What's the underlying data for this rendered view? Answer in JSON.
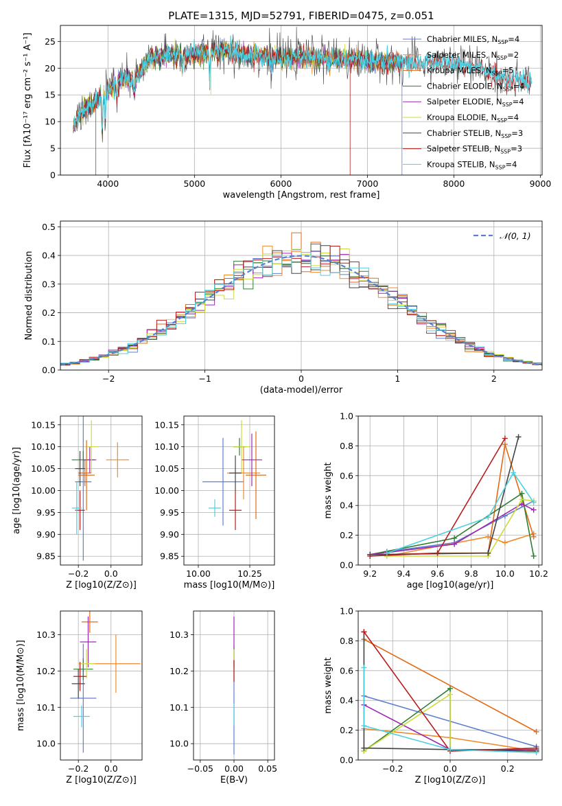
{
  "colors": [
    "#5b7fcf",
    "#ef8a2b",
    "#e36a13",
    "#2e7d32",
    "#9c27b0",
    "#cddc39",
    "#424242",
    "#b71c1c",
    "#4dd0e1"
  ],
  "chart_data": [
    {
      "id": "spectrum",
      "type": "line",
      "title": "PLATE=1315, MJD=52791, FIBERID=0475, z=0.051",
      "xlabel": "wavelength [Angstrom, rest frame]",
      "ylabel": "Flux [fλ10⁻¹⁷ erg cm⁻² s⁻¹ A⁻¹]",
      "xlim": [
        3450,
        9020
      ],
      "ylim": [
        0,
        28
      ],
      "xticks": [
        4000,
        5000,
        6000,
        7000,
        8000,
        9000
      ],
      "yticks": [
        0,
        5,
        10,
        15,
        20,
        25
      ],
      "continuum": [
        [
          3600,
          9
        ],
        [
          3700,
          12
        ],
        [
          3800,
          13
        ],
        [
          3900,
          14
        ],
        [
          4000,
          16
        ],
        [
          4100,
          17.5
        ],
        [
          4200,
          18.5
        ],
        [
          4300,
          17.5
        ],
        [
          4400,
          20
        ],
        [
          4500,
          22
        ],
        [
          4700,
          22.5
        ],
        [
          5000,
          22.5
        ],
        [
          5300,
          23.5
        ],
        [
          5600,
          22.5
        ],
        [
          6000,
          22
        ],
        [
          6500,
          22
        ],
        [
          7000,
          21.5
        ],
        [
          7400,
          21
        ],
        [
          7800,
          21
        ],
        [
          8200,
          20.5
        ],
        [
          8600,
          18
        ],
        [
          8900,
          17
        ]
      ],
      "legend": [
        "Chabrier MILES, N_SSP=4",
        "Salpeter MILES, N_SSP=2",
        "Kroupa MILES, N_SSP=5",
        "Chabrier ELODIE, N_SSP=4",
        "Salpeter ELODIE, N_SSP=4",
        "Kroupa ELODIE, N_SSP=4",
        "Chabrier STELIB, N_SSP=3",
        "Salpeter STELIB, N_SSP=3",
        "Kroupa STELIB, N_SSP=4"
      ],
      "legend_placement": "right"
    },
    {
      "id": "residuals",
      "type": "step",
      "xlabel": "(data-model)/error",
      "ylabel": "Normed distribution",
      "xlim": [
        -2.5,
        2.5
      ],
      "ylim": [
        0,
        0.52
      ],
      "xticks": [
        -2,
        -1,
        0,
        1,
        2
      ],
      "yticks": [
        0,
        0.1,
        0.2,
        0.3,
        0.4,
        0.5
      ],
      "bin_width": 0.1,
      "legend": [
        "𝒩(0, 1)"
      ],
      "legend_placement": "top-right"
    },
    {
      "id": "age_vs_Z",
      "type": "errorbar",
      "xlabel": "Z [log10(Z/Z⊙)]",
      "ylabel": "age  [log10(age/yr)]",
      "xlim": [
        -0.31,
        0.19
      ],
      "ylim": [
        9.83,
        10.17
      ],
      "xticks": [
        -0.2,
        0.0
      ],
      "yticks": [
        9.85,
        9.9,
        9.95,
        10.0,
        10.05,
        10.1,
        10.15
      ],
      "points": [
        {
          "x": -0.17,
          "y": 10.02,
          "xerr": 0.05,
          "yerr": 0.18,
          "c": 0
        },
        {
          "x": 0.04,
          "y": 10.07,
          "xerr": 0.07,
          "yerr": 0.04,
          "c": 1
        },
        {
          "x": -0.16,
          "y": 10.04,
          "xerr": 0.04,
          "yerr": 0.03,
          "c": 2
        },
        {
          "x": -0.17,
          "y": 10.07,
          "xerr": 0.07,
          "yerr": 0.02,
          "c": 3
        },
        {
          "x": -0.13,
          "y": 10.07,
          "xerr": 0.04,
          "yerr": 0.03,
          "c": 4
        },
        {
          "x": -0.12,
          "y": 10.1,
          "xerr": 0.04,
          "yerr": 0.06,
          "c": 5
        },
        {
          "x": -0.19,
          "y": 10.05,
          "xerr": 0.03,
          "yerr": 0.04,
          "c": 6
        },
        {
          "x": -0.19,
          "y": 9.955,
          "xerr": 0.03,
          "yerr": 0.045,
          "c": 7
        },
        {
          "x": -0.21,
          "y": 9.96,
          "xerr": 0.03,
          "yerr": 0.06,
          "c": 8
        },
        {
          "x": -0.15,
          "y": 10.035,
          "xerr": 0.05,
          "yerr": 0.08,
          "c": 2
        }
      ]
    },
    {
      "id": "age_vs_mass",
      "type": "errorbar",
      "xlabel": "mass [log10(M/M⊙)]",
      "ylabel": "",
      "xlim": [
        9.93,
        10.37
      ],
      "ylim": [
        9.83,
        10.17
      ],
      "xticks": [
        10.0,
        10.25
      ],
      "yticks": [
        9.85,
        9.9,
        9.95,
        10.0,
        10.05,
        10.1,
        10.15
      ],
      "points": [
        {
          "x": 10.12,
          "y": 10.02,
          "xerr": 0.1,
          "yerr": 0.1,
          "c": 0
        },
        {
          "x": 10.22,
          "y": 10.04,
          "xerr": 0.08,
          "yerr": 0.06,
          "c": 1
        },
        {
          "x": 10.28,
          "y": 10.035,
          "xerr": 0.05,
          "yerr": 0.1,
          "c": 2
        },
        {
          "x": 10.2,
          "y": 10.1,
          "xerr": 0.03,
          "yerr": 0.02,
          "c": 3
        },
        {
          "x": 10.26,
          "y": 10.07,
          "xerr": 0.05,
          "yerr": 0.06,
          "c": 4
        },
        {
          "x": 10.21,
          "y": 10.1,
          "xerr": 0.04,
          "yerr": 0.06,
          "c": 5
        },
        {
          "x": 10.18,
          "y": 10.04,
          "xerr": 0.03,
          "yerr": 0.04,
          "c": 6
        },
        {
          "x": 10.18,
          "y": 9.955,
          "xerr": 0.03,
          "yerr": 0.045,
          "c": 7
        },
        {
          "x": 10.08,
          "y": 9.96,
          "xerr": 0.03,
          "yerr": 0.02,
          "c": 8
        }
      ]
    },
    {
      "id": "mass_weight_vs_age",
      "type": "line",
      "xlabel": "age  [log10(age/yr)]",
      "ylabel": "mass weight",
      "xlim": [
        9.13,
        10.22
      ],
      "ylim": [
        0,
        1
      ],
      "xticks": [
        9.2,
        9.4,
        9.6,
        9.8,
        10.0,
        10.2
      ],
      "yticks": [
        0,
        0.2,
        0.4,
        0.6,
        0.8,
        1.0
      ],
      "series": [
        {
          "c": 0,
          "points": [
            [
              9.3,
              0.09
            ],
            [
              9.7,
              0.15
            ],
            [
              10.0,
              0.33
            ],
            [
              10.17,
              0.43
            ]
          ]
        },
        {
          "c": 1,
          "points": [
            [
              9.3,
              0.06
            ],
            [
              9.9,
              0.19
            ],
            [
              10.0,
              0.15
            ],
            [
              10.17,
              0.21
            ]
          ]
        },
        {
          "c": 2,
          "points": [
            [
              9.3,
              0.07
            ],
            [
              9.6,
              0.08
            ],
            [
              9.9,
              0.08
            ],
            [
              10.0,
              0.81
            ],
            [
              10.17,
              0.19
            ]
          ]
        },
        {
          "c": 3,
          "points": [
            [
              9.2,
              0.07
            ],
            [
              9.7,
              0.18
            ],
            [
              10.1,
              0.48
            ],
            [
              10.17,
              0.06
            ]
          ]
        },
        {
          "c": 4,
          "points": [
            [
              9.2,
              0.07
            ],
            [
              9.7,
              0.14
            ],
            [
              10.1,
              0.41
            ],
            [
              10.17,
              0.37
            ]
          ]
        },
        {
          "c": 5,
          "points": [
            [
              9.3,
              0.06
            ],
            [
              9.9,
              0.06
            ],
            [
              10.1,
              0.44
            ],
            [
              10.17,
              0.43
            ]
          ]
        },
        {
          "c": 6,
          "points": [
            [
              9.2,
              0.07
            ],
            [
              9.9,
              0.08
            ],
            [
              10.08,
              0.86
            ]
          ]
        },
        {
          "c": 7,
          "points": [
            [
              9.2,
              0.06
            ],
            [
              9.6,
              0.08
            ],
            [
              10.0,
              0.85
            ]
          ]
        },
        {
          "c": 8,
          "points": [
            [
              9.3,
              0.08
            ],
            [
              9.9,
              0.32
            ],
            [
              10.05,
              0.62
            ],
            [
              10.17,
              0.42
            ]
          ]
        }
      ]
    },
    {
      "id": "mass_vs_Z",
      "type": "errorbar",
      "xlabel": "Z [log10(Z/Z⊙)]",
      "ylabel": "mass [log10(M/M⊙)]",
      "xlim": [
        -0.31,
        0.19
      ],
      "ylim": [
        9.955,
        10.365
      ],
      "xticks": [
        -0.2,
        0.0
      ],
      "yticks": [
        10.0,
        10.1,
        10.2,
        10.3
      ],
      "points": [
        {
          "x": -0.17,
          "y": 10.125,
          "xerr": 0.08,
          "yerr": 0.15,
          "c": 0
        },
        {
          "x": 0.03,
          "y": 10.22,
          "xerr": 0.15,
          "yerr": 0.08,
          "c": 1
        },
        {
          "x": -0.13,
          "y": 10.335,
          "xerr": 0.05,
          "yerr": 0.03,
          "c": 2
        },
        {
          "x": -0.17,
          "y": 10.205,
          "xerr": 0.06,
          "yerr": 0.03,
          "c": 3
        },
        {
          "x": -0.14,
          "y": 10.28,
          "xerr": 0.05,
          "yerr": 0.07,
          "c": 4
        },
        {
          "x": -0.15,
          "y": 10.22,
          "xerr": 0.05,
          "yerr": 0.04,
          "c": 5
        },
        {
          "x": -0.2,
          "y": 10.165,
          "xerr": 0.04,
          "yerr": 0.04,
          "c": 6
        },
        {
          "x": -0.19,
          "y": 10.185,
          "xerr": 0.04,
          "yerr": 0.04,
          "c": 7
        },
        {
          "x": -0.18,
          "y": 10.075,
          "xerr": 0.05,
          "yerr": 0.03,
          "c": 8
        }
      ]
    },
    {
      "id": "mass_vs_ebv",
      "type": "errorbar",
      "xlabel": "E(B-V)",
      "ylabel": "",
      "xlim": [
        -0.06,
        0.06
      ],
      "ylim": [
        9.955,
        10.365
      ],
      "xticks": [
        -0.05,
        0.0,
        0.05
      ],
      "yticks": [
        10.0,
        10.1,
        10.2,
        10.3
      ],
      "points": [
        {
          "x": 0,
          "y": 10.12,
          "xerr": 0,
          "yerr": 0.15,
          "c": 0
        },
        {
          "x": 0,
          "y": 10.28,
          "xerr": 0,
          "yerr": 0.07,
          "c": 4
        },
        {
          "x": 0,
          "y": 10.22,
          "xerr": 0,
          "yerr": 0.04,
          "c": 5
        },
        {
          "x": 0,
          "y": 10.2,
          "xerr": 0,
          "yerr": 0.03,
          "c": 7
        },
        {
          "x": 0,
          "y": 10.08,
          "xerr": 0,
          "yerr": 0.03,
          "c": 8
        }
      ]
    },
    {
      "id": "mass_weight_vs_Z",
      "type": "line",
      "xlabel": "Z [log10(Z/Z⊙)]",
      "ylabel": "mass weight",
      "xlim": [
        -0.32,
        0.32
      ],
      "ylim": [
        0,
        1
      ],
      "xticks": [
        -0.2,
        0.0,
        0.2
      ],
      "yticks": [
        0,
        0.2,
        0.4,
        0.6,
        0.8,
        1.0
      ],
      "series": [
        {
          "c": 0,
          "points": [
            [
              -0.3,
              0.43
            ],
            [
              0.3,
              0.09
            ]
          ]
        },
        {
          "c": 1,
          "points": [
            [
              -0.3,
              0.21
            ],
            [
              0.0,
              0.15
            ],
            [
              0.3,
              0.06
            ]
          ]
        },
        {
          "c": 2,
          "points": [
            [
              -0.3,
              0.81
            ],
            [
              0.3,
              0.19
            ]
          ]
        },
        {
          "c": 3,
          "points": [
            [
              -0.3,
              0.06
            ],
            [
              0.0,
              0.48
            ],
            [
              0.0,
              0.07
            ],
            [
              0.3,
              0.06
            ]
          ]
        },
        {
          "c": 4,
          "points": [
            [
              -0.3,
              0.37
            ],
            [
              0.0,
              0.07
            ],
            [
              0.3,
              0.07
            ]
          ]
        },
        {
          "c": 5,
          "points": [
            [
              -0.3,
              0.06
            ],
            [
              0.0,
              0.44
            ],
            [
              0.0,
              0.07
            ],
            [
              0.3,
              0.06
            ]
          ]
        },
        {
          "c": 6,
          "points": [
            [
              -0.3,
              0.86
            ],
            [
              -0.3,
              0.08
            ],
            [
              0.3,
              0.06
            ]
          ]
        },
        {
          "c": 7,
          "points": [
            [
              -0.3,
              0.86
            ],
            [
              0.0,
              0.06
            ],
            [
              0.3,
              0.08
            ]
          ]
        },
        {
          "c": 8,
          "points": [
            [
              -0.3,
              0.62
            ],
            [
              -0.3,
              0.23
            ],
            [
              0.0,
              0.07
            ],
            [
              0.3,
              0.05
            ]
          ]
        }
      ]
    }
  ]
}
